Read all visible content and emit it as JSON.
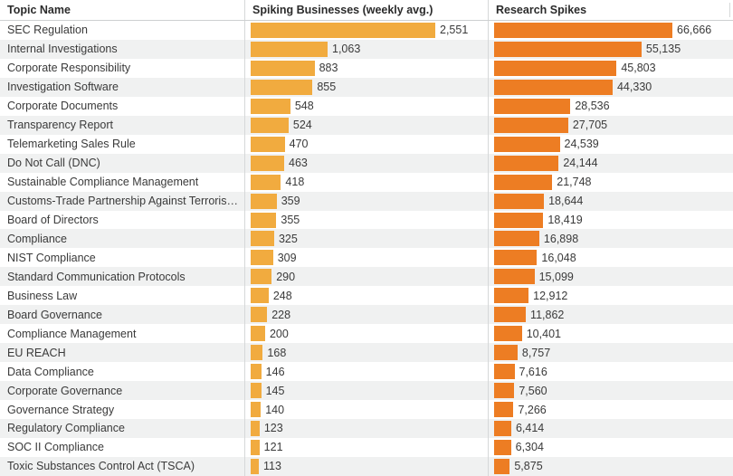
{
  "table": {
    "columns": [
      "Topic Name",
      "Spiking Businesses (weekly avg.)",
      "Research Spikes"
    ]
  },
  "colors": {
    "business_bar": "#F1AB3F",
    "research_bar": "#ED7D23",
    "row_stripe": "#F0F1F1",
    "header_text": "#2b2b2b",
    "body_text": "#3a3a3a",
    "divider": "#d6d8d9"
  },
  "chart_data": {
    "type": "bar",
    "orientation": "horizontal",
    "title": "",
    "legend_position": "none",
    "grid": false,
    "categories": [
      "SEC Regulation",
      "Internal Investigations",
      "Corporate Responsibility",
      "Investigation Software",
      "Corporate Documents",
      "Transparency Report",
      "Telemarketing Sales Rule",
      "Do Not Call (DNC)",
      "Sustainable Compliance Management",
      "Customs-Trade Partnership Against Terroris…",
      "Board of Directors",
      "Compliance",
      "NIST Compliance",
      "Standard Communication Protocols",
      "Business Law",
      "Board Governance",
      "Compliance Management",
      "EU REACH",
      "Data Compliance",
      "Corporate Governance",
      "Governance Strategy",
      "Regulatory Compliance",
      "SOC II Compliance",
      "Toxic Substances Control Act (TSCA)"
    ],
    "series": [
      {
        "name": "Spiking Businesses (weekly avg.)",
        "values": [
          2551,
          1063,
          883,
          855,
          548,
          524,
          470,
          463,
          418,
          359,
          355,
          325,
          309,
          290,
          248,
          228,
          200,
          168,
          146,
          145,
          140,
          123,
          121,
          113
        ],
        "labels": [
          "2,551",
          "1,063",
          "883",
          "855",
          "548",
          "524",
          "470",
          "463",
          "418",
          "359",
          "355",
          "325",
          "309",
          "290",
          "248",
          "228",
          "200",
          "168",
          "146",
          "145",
          "140",
          "123",
          "121",
          "113"
        ]
      },
      {
        "name": "Research Spikes",
        "values": [
          66666,
          55135,
          45803,
          44330,
          28536,
          27705,
          24539,
          24144,
          21748,
          18644,
          18419,
          16898,
          16048,
          15099,
          12912,
          11862,
          10401,
          8757,
          7616,
          7560,
          7266,
          6414,
          6304,
          5875
        ],
        "labels": [
          "66,666",
          "55,135",
          "45,803",
          "44,330",
          "28,536",
          "27,705",
          "24,539",
          "24,144",
          "21,748",
          "18,644",
          "18,419",
          "16,898",
          "16,048",
          "15,099",
          "12,912",
          "11,862",
          "10,401",
          "8,757",
          "7,616",
          "7,560",
          "7,266",
          "6,414",
          "6,304",
          "5,875"
        ]
      }
    ]
  }
}
